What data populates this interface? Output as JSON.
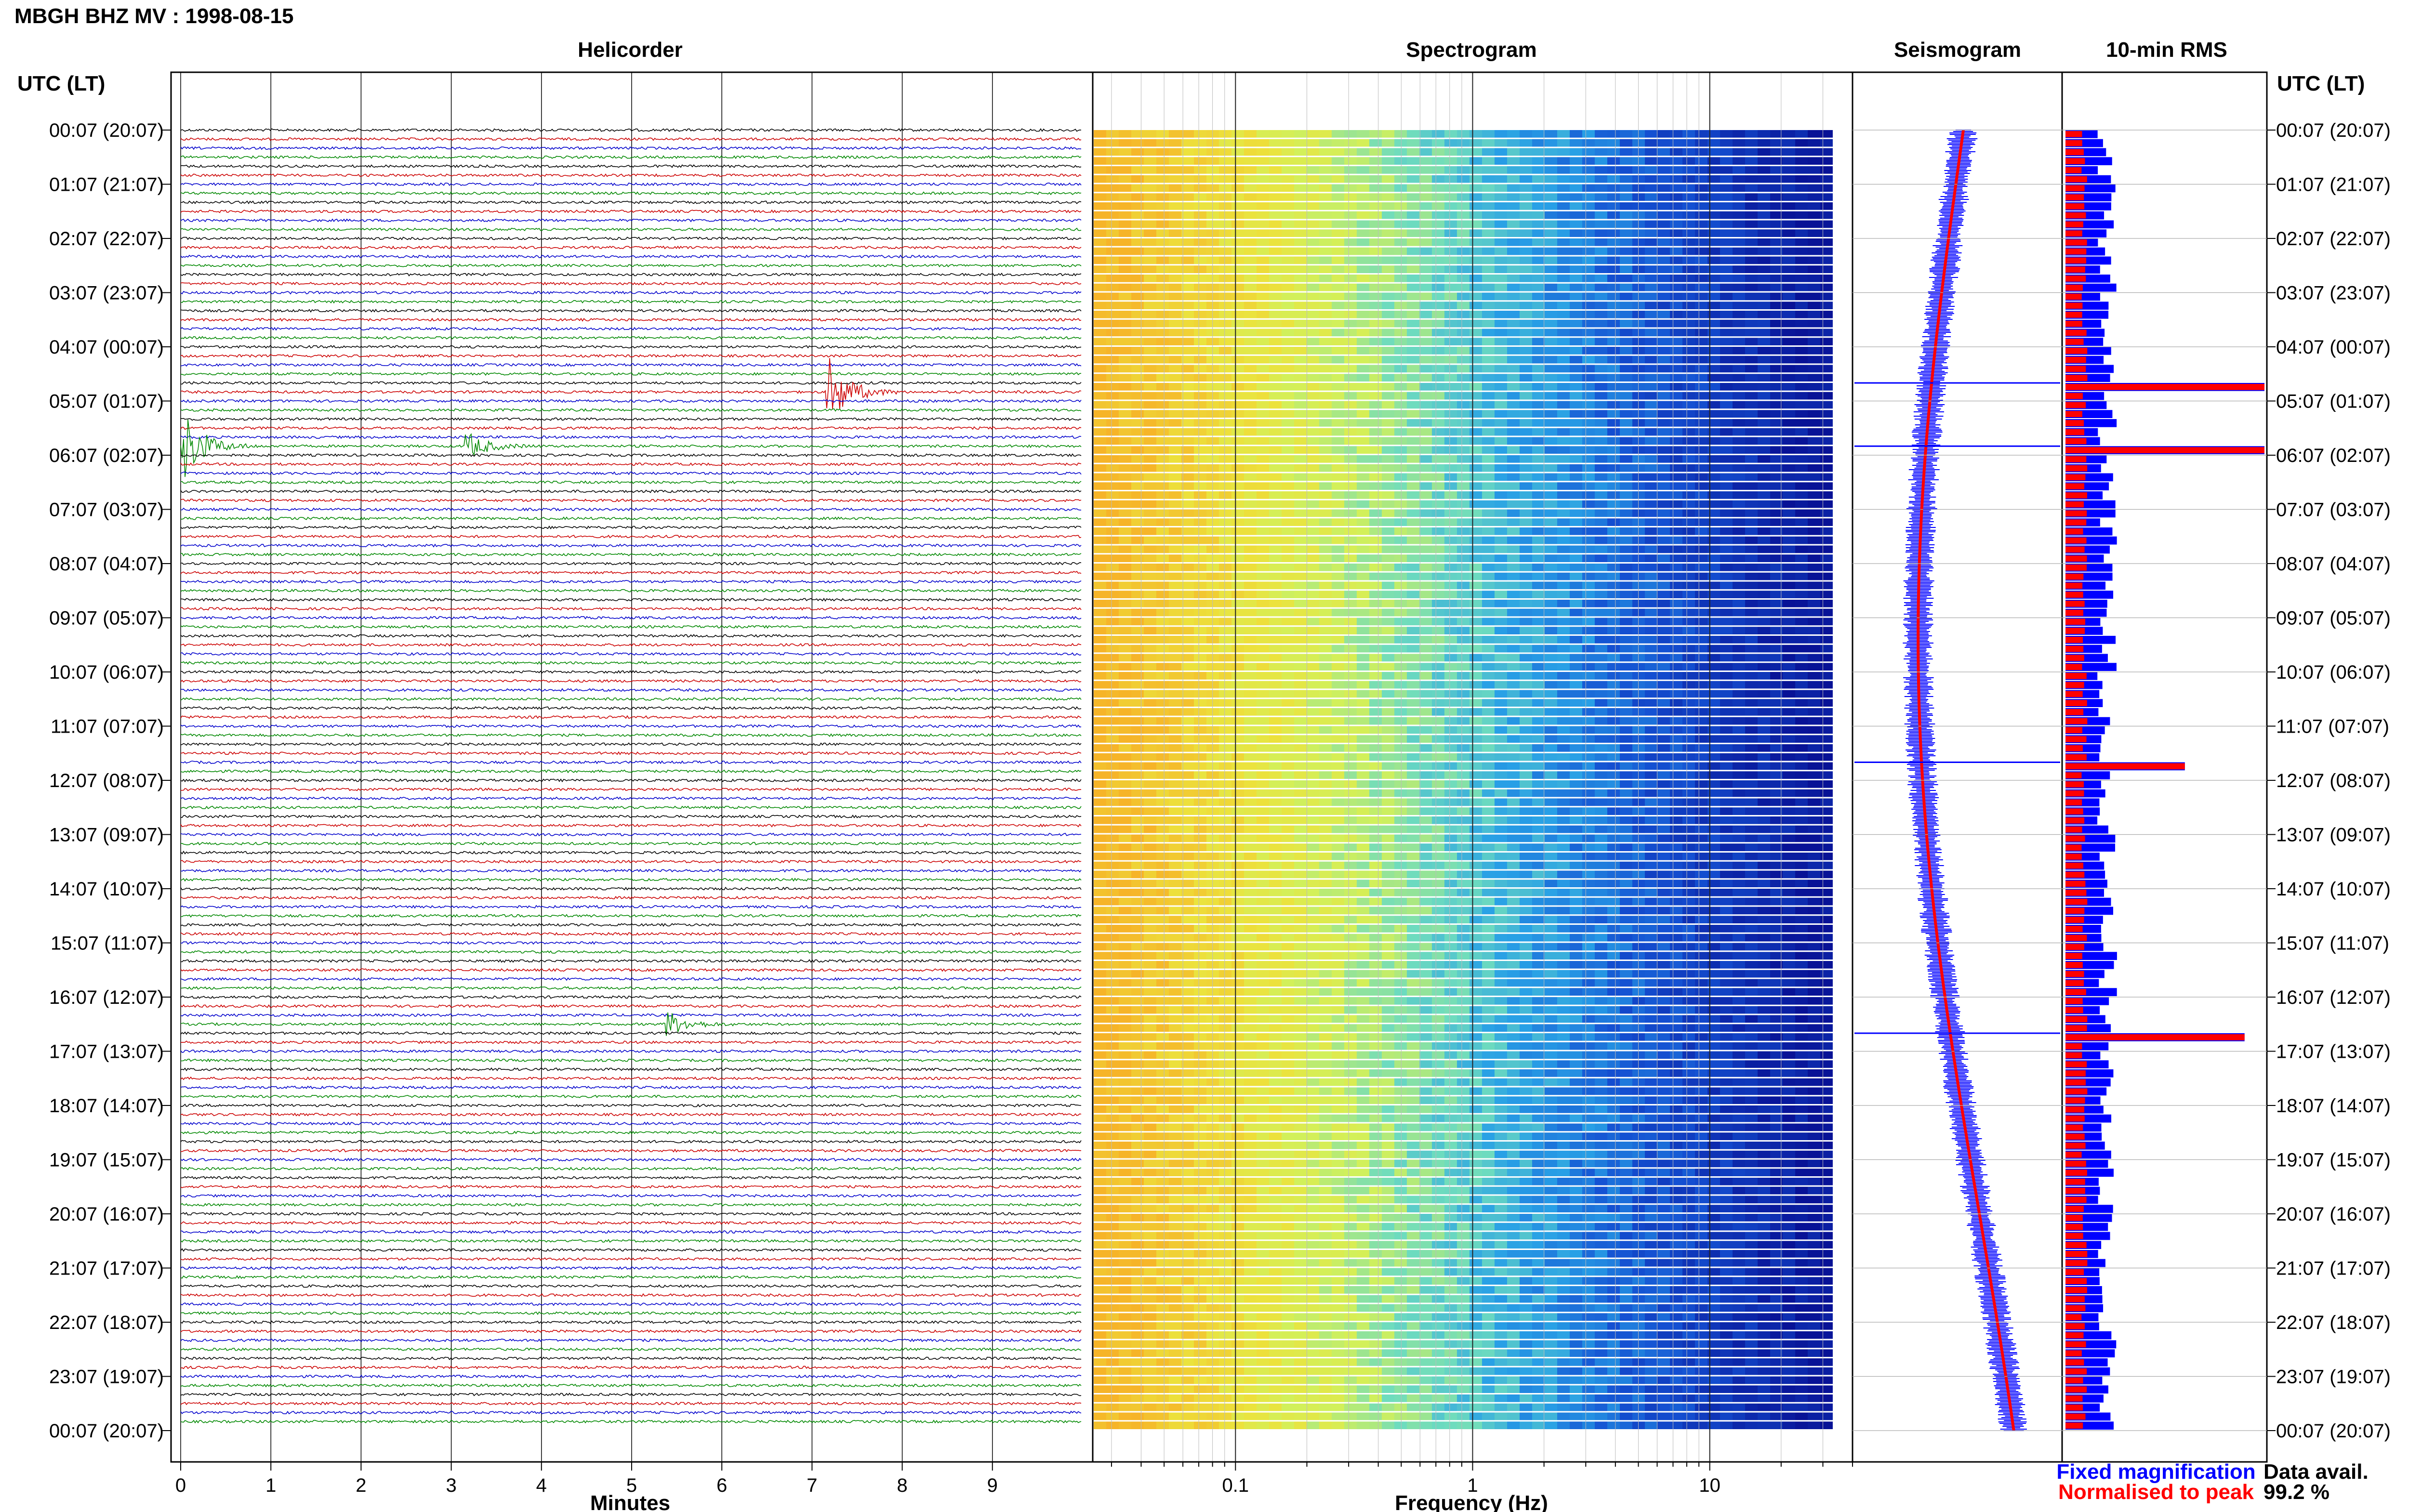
{
  "title": "MBGH BHZ MV : 1998-08-15",
  "panels": {
    "helicorder": "Helicorder",
    "spectrogram": "Spectrogram",
    "seismogram": "Seismogram",
    "rms": "10-min RMS"
  },
  "time_axis_header": "UTC (LT)",
  "time_labels": [
    "00:07 (20:07)",
    "01:07 (21:07)",
    "02:07 (22:07)",
    "03:07 (23:07)",
    "04:07 (00:07)",
    "05:07 (01:07)",
    "06:07 (02:07)",
    "07:07 (03:07)",
    "08:07 (04:07)",
    "09:07 (05:07)",
    "10:07 (06:07)",
    "11:07 (07:07)",
    "12:07 (08:07)",
    "13:07 (09:07)",
    "14:07 (10:07)",
    "15:07 (11:07)",
    "16:07 (12:07)",
    "17:07 (13:07)",
    "18:07 (14:07)",
    "19:07 (15:07)",
    "20:07 (16:07)",
    "21:07 (17:07)",
    "22:07 (18:07)",
    "23:07 (19:07)",
    "00:07 (20:07)"
  ],
  "legend": {
    "fixed": "Fixed magnification",
    "normalised": "Normalised to peak",
    "fixed_color": "#0000ff",
    "normalised_color": "#ff0000"
  },
  "data_avail": {
    "label": "Data avail.",
    "value": "99.2 %"
  },
  "colors": {
    "trace_cycle": [
      "#000000",
      "#cc0000",
      "#0000cc",
      "#008800"
    ]
  },
  "chart_data": [
    {
      "type": "line",
      "title": "Helicorder",
      "xlabel": "Minutes",
      "xticks": [
        "0",
        "1",
        "2",
        "3",
        "4",
        "5",
        "6",
        "7",
        "8",
        "9"
      ],
      "xlim": [
        0,
        10
      ],
      "rows_per_hour": 6,
      "events": [
        {
          "time": "04:57",
          "minute": 7.2,
          "amplitude": "large"
        },
        {
          "time": "05:57",
          "minute": 0.05,
          "amplitude": "large"
        },
        {
          "time": "05:57",
          "minute": 3.2,
          "amplitude": "medium"
        },
        {
          "time": "16:37",
          "minute": 5.4,
          "amplitude": "medium"
        }
      ]
    },
    {
      "type": "heatmap",
      "title": "Spectrogram",
      "xlabel": "Frequency (Hz)",
      "xscale": "log",
      "xlim": [
        0.025,
        40
      ],
      "xticks": [
        "0.1",
        "1",
        "10"
      ]
    },
    {
      "type": "line",
      "title": "Seismogram",
      "series": [
        {
          "name": "Fixed magnification",
          "color": "#0000ff"
        },
        {
          "name": "Normalised to peak",
          "color": "#ff0000"
        }
      ],
      "spikes": [
        "04:47",
        "05:57",
        "11:47",
        "16:47"
      ]
    },
    {
      "type": "bar",
      "title": "10-min RMS",
      "orientation": "horizontal",
      "series": [
        {
          "name": "Normalised to peak",
          "color": "#ff0000"
        },
        {
          "name": "Fixed magnification",
          "color": "#0000ff"
        }
      ],
      "peaks": [
        {
          "time": "04:47",
          "value": 1.0
        },
        {
          "time": "05:57",
          "value": 1.0
        },
        {
          "time": "11:47",
          "value": 0.6
        },
        {
          "time": "16:47",
          "value": 0.9
        }
      ]
    }
  ]
}
